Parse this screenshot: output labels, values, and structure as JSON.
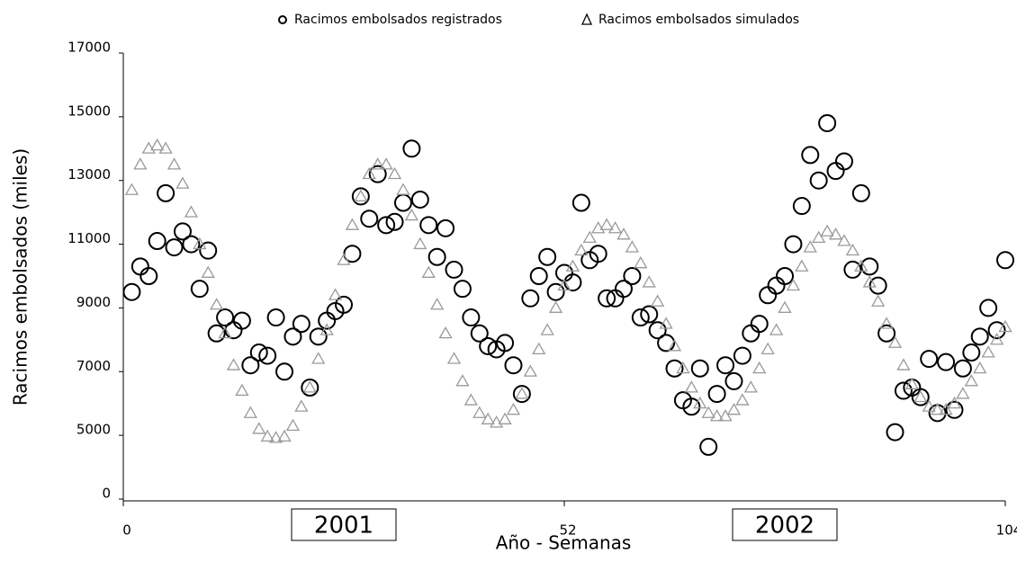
{
  "chart_data": {
    "type": "scatter",
    "xlabel": "Año - Semanas",
    "ylabel": "Racimos embolsados (miles)",
    "xlim": [
      0,
      104
    ],
    "xticks": [
      0,
      52,
      104
    ],
    "ylim": [
      0,
      17000
    ],
    "yticks": [
      0,
      5000,
      7000,
      9000,
      11000,
      13000,
      15000,
      17000
    ],
    "ybroken": true,
    "grid": false,
    "legend": "top",
    "annotations": [
      {
        "text": "2001",
        "x": 26
      },
      {
        "text": "2002",
        "x": 78
      }
    ],
    "series": [
      {
        "name": "Racimos embolsados registrados",
        "color": "#000000",
        "marker": "circle",
        "x": [
          1,
          2,
          3,
          4,
          5,
          6,
          7,
          8,
          9,
          10,
          11,
          12,
          13,
          14,
          15,
          16,
          17,
          18,
          19,
          20,
          21,
          22,
          23,
          24,
          25,
          26,
          27,
          28,
          29,
          30,
          31,
          32,
          33,
          34,
          35,
          36,
          37,
          38,
          39,
          40,
          41,
          42,
          43,
          44,
          45,
          46,
          47,
          48,
          49,
          50,
          51,
          52,
          53,
          54,
          55,
          56,
          57,
          58,
          59,
          60,
          61,
          62,
          63,
          64,
          65,
          66,
          67,
          68,
          69,
          70,
          71,
          72,
          73,
          74,
          75,
          76,
          77,
          78,
          79,
          80,
          81,
          82,
          83,
          84,
          85,
          86,
          87,
          88,
          89,
          90,
          91,
          92,
          93,
          94,
          95,
          96,
          97,
          98,
          99,
          100,
          101,
          102,
          103,
          104
        ],
        "values": [
          9500,
          10300,
          10000,
          11100,
          12600,
          10900,
          11400,
          11000,
          9600,
          10800,
          8200,
          8700,
          8300,
          8600,
          7200,
          7600,
          7500,
          8700,
          7000,
          8100,
          8500,
          6500,
          8100,
          8600,
          8900,
          9100,
          10700,
          12500,
          11800,
          13200,
          11600,
          11700,
          12300,
          14000,
          12400,
          11600,
          10600,
          11500,
          10200,
          9600,
          8700,
          8200,
          7800,
          7700,
          7900,
          7200,
          6300,
          9300,
          10000,
          10600,
          9500,
          10100,
          9800,
          12300,
          10500,
          10700,
          9300,
          9300,
          9600,
          10000,
          8700,
          8800,
          8300,
          7900,
          7100,
          6100,
          5900,
          7100,
          4100,
          6300,
          7200,
          6700,
          7500,
          8200,
          8500,
          9400,
          9700,
          10000,
          11000,
          12200,
          13800,
          13000,
          14800,
          13300,
          13600,
          10200,
          12600,
          10300,
          9700,
          8200,
          5100,
          6400,
          6500,
          6200,
          7400,
          5700,
          7300,
          5800,
          7100,
          7600,
          8100,
          9000,
          8300,
          10500
        ]
      },
      {
        "name": "Racimos embolsados simulados",
        "color": "#999999",
        "marker": "triangle",
        "x": [
          1,
          2,
          3,
          4,
          5,
          6,
          7,
          8,
          9,
          10,
          11,
          12,
          13,
          14,
          15,
          16,
          17,
          18,
          19,
          20,
          21,
          22,
          23,
          24,
          25,
          26,
          27,
          28,
          29,
          30,
          31,
          32,
          33,
          34,
          35,
          36,
          37,
          38,
          39,
          40,
          41,
          42,
          43,
          44,
          45,
          46,
          47,
          48,
          49,
          50,
          51,
          52,
          53,
          54,
          55,
          56,
          57,
          58,
          59,
          60,
          61,
          62,
          63,
          64,
          65,
          66,
          67,
          68,
          69,
          70,
          71,
          72,
          73,
          74,
          75,
          76,
          77,
          78,
          79,
          80,
          81,
          82,
          83,
          84,
          85,
          86,
          87,
          88,
          89,
          90,
          91,
          92,
          93,
          94,
          95,
          96,
          97,
          98,
          99,
          100,
          101,
          102,
          103,
          104
        ],
        "values": [
          12700,
          13500,
          14000,
          14100,
          14000,
          13500,
          12900,
          12000,
          11000,
          10100,
          9100,
          8200,
          7200,
          6400,
          5700,
          5200,
          4900,
          4800,
          4900,
          5300,
          5900,
          6500,
          7400,
          8300,
          9400,
          10500,
          11600,
          12500,
          13200,
          13500,
          13500,
          13200,
          12700,
          11900,
          11000,
          10100,
          9100,
          8200,
          7400,
          6700,
          6100,
          5700,
          5500,
          5400,
          5500,
          5800,
          6300,
          7000,
          7700,
          8300,
          9000,
          9700,
          10300,
          10800,
          11200,
          11500,
          11600,
          11500,
          11300,
          10900,
          10400,
          9800,
          9200,
          8500,
          7800,
          7100,
          6500,
          6000,
          5700,
          5600,
          5600,
          5800,
          6100,
          6500,
          7100,
          7700,
          8300,
          9000,
          9700,
          10300,
          10900,
          11200,
          11400,
          11300,
          11100,
          10800,
          10300,
          9800,
          9200,
          8500,
          7900,
          7200,
          6600,
          6200,
          5900,
          5800,
          5800,
          6000,
          6300,
          6700,
          7100,
          7600,
          8000,
          8400
        ]
      }
    ]
  }
}
